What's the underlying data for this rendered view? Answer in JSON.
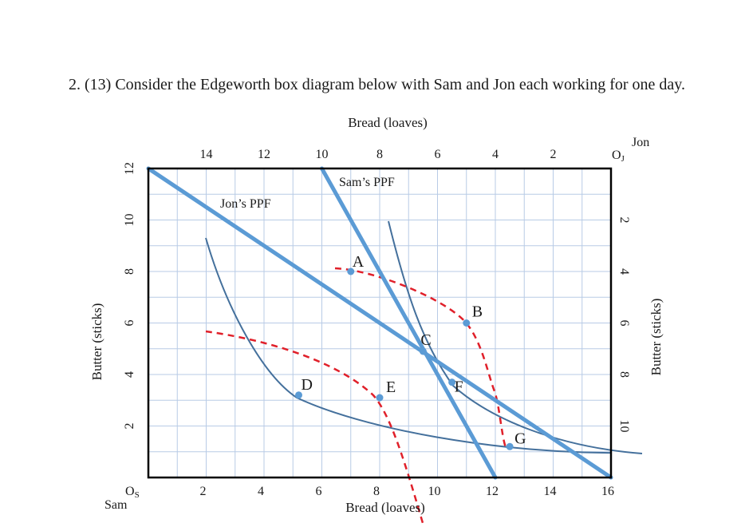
{
  "question": {
    "text": "2. (13) Consider the Edgeworth box diagram below with Sam and Jon each working for one day."
  },
  "axes": {
    "top_title": "Bread (loaves)",
    "bottom_title": "Bread (loaves)",
    "left_title": "Butter (sticks)",
    "right_title": "Butter (sticks)",
    "sam_origin": "O",
    "sam_origin_sub": "S",
    "sam_name": "Sam",
    "jon_origin": "O",
    "jon_origin_sub": "J",
    "jon_name": "Jon",
    "bottom_ticks": [
      "2",
      "4",
      "6",
      "8",
      "10",
      "12",
      "14",
      "16"
    ],
    "bottom_tick_values": [
      2,
      4,
      6,
      8,
      10,
      12,
      14,
      16
    ],
    "top_ticks": [
      "14",
      "12",
      "10",
      "8",
      "6",
      "4",
      "2"
    ],
    "top_tick_values": [
      14,
      12,
      10,
      8,
      6,
      4,
      2
    ],
    "left_ticks": [
      "12",
      "10",
      "8",
      "6",
      "4",
      "2"
    ],
    "left_tick_values": [
      12,
      10,
      8,
      6,
      4,
      2
    ],
    "right_ticks": [
      "2",
      "4",
      "6",
      "8",
      "10"
    ],
    "right_tick_values": [
      2,
      4,
      6,
      8,
      10
    ],
    "x_range": [
      0,
      16
    ],
    "y_range": [
      0,
      12
    ]
  },
  "ppf": {
    "jon_label": "Jon’s PPF",
    "jon_points": [
      [
        0,
        12
      ],
      [
        16,
        0
      ]
    ],
    "sam_label": "Sam’s PPF",
    "sam_points": [
      [
        6,
        12
      ],
      [
        12,
        0
      ]
    ]
  },
  "points": [
    {
      "label": "A",
      "x": 7,
      "y": 8
    },
    {
      "label": "B",
      "x": 11,
      "y": 6
    },
    {
      "label": "C",
      "x": 9.5,
      "y": 4.9
    },
    {
      "label": "D",
      "x": 5.2,
      "y": 3.2
    },
    {
      "label": "E",
      "x": 8,
      "y": 3.1
    },
    {
      "label": "F",
      "x": 10.5,
      "y": 3.7
    },
    {
      "label": "G",
      "x": 12.5,
      "y": 1.2
    }
  ],
  "colors": {
    "ppf": "#5b9bd5",
    "indifference": "#44709c",
    "frontier": "#e0202a",
    "grid": "#b8cbe6",
    "frame": "#000000",
    "point": "#5b9bd5"
  }
}
